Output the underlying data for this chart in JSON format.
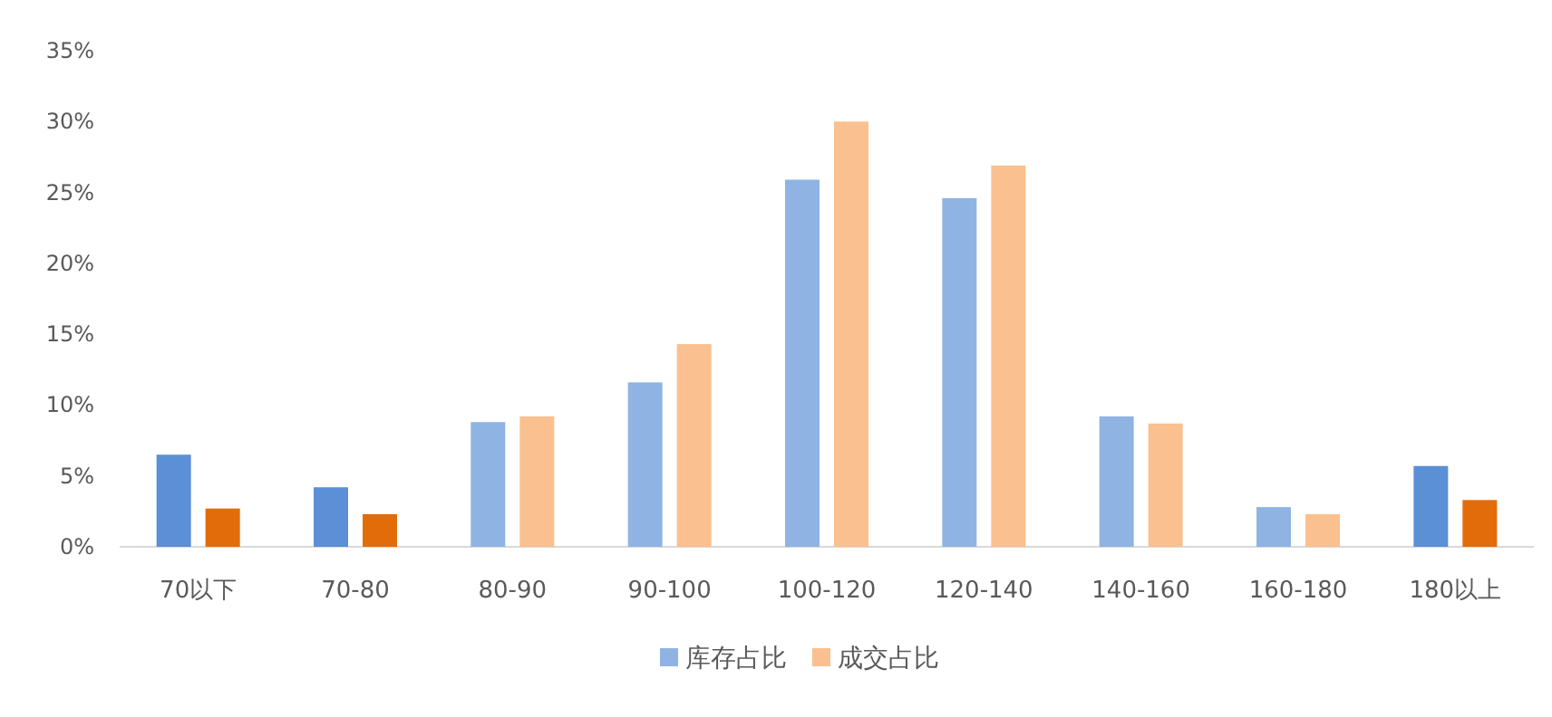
{
  "chart_data": {
    "type": "bar",
    "categories": [
      "70以下",
      "70-80",
      "80-90",
      "90-100",
      "100-120",
      "120-140",
      "140-160",
      "160-180",
      "180以上"
    ],
    "series": [
      {
        "name": "库存占比",
        "color": "#8fb4e3",
        "colors": [
          "#5b8fd6",
          "#5b8fd6",
          "#8fb4e3",
          "#8fb4e3",
          "#8fb4e3",
          "#8fb4e3",
          "#8fb4e3",
          "#8fb4e3",
          "#5b8fd6"
        ],
        "values": [
          6.5,
          4.2,
          8.8,
          11.6,
          25.9,
          24.6,
          9.2,
          2.8,
          5.7
        ]
      },
      {
        "name": "成交占比",
        "color": "#fac08f",
        "colors": [
          "#e36c0a",
          "#e36c0a",
          "#fac08f",
          "#fac08f",
          "#fac08f",
          "#fac08f",
          "#fac08f",
          "#fac08f",
          "#e36c0a"
        ],
        "values": [
          2.7,
          2.3,
          9.2,
          14.3,
          30.0,
          26.9,
          8.7,
          2.3,
          3.3
        ]
      }
    ],
    "ylim": [
      0,
      35
    ],
    "yticks": [
      {
        "value": 0,
        "label": "0%"
      },
      {
        "value": 5,
        "label": "5%"
      },
      {
        "value": 10,
        "label": "10%"
      },
      {
        "value": 15,
        "label": "15%"
      },
      {
        "value": 20,
        "label": "20%"
      },
      {
        "value": 25,
        "label": "25%"
      },
      {
        "value": 30,
        "label": "30%"
      },
      {
        "value": 35,
        "label": "35%"
      }
    ],
    "grid": false,
    "legend": "bottom"
  }
}
